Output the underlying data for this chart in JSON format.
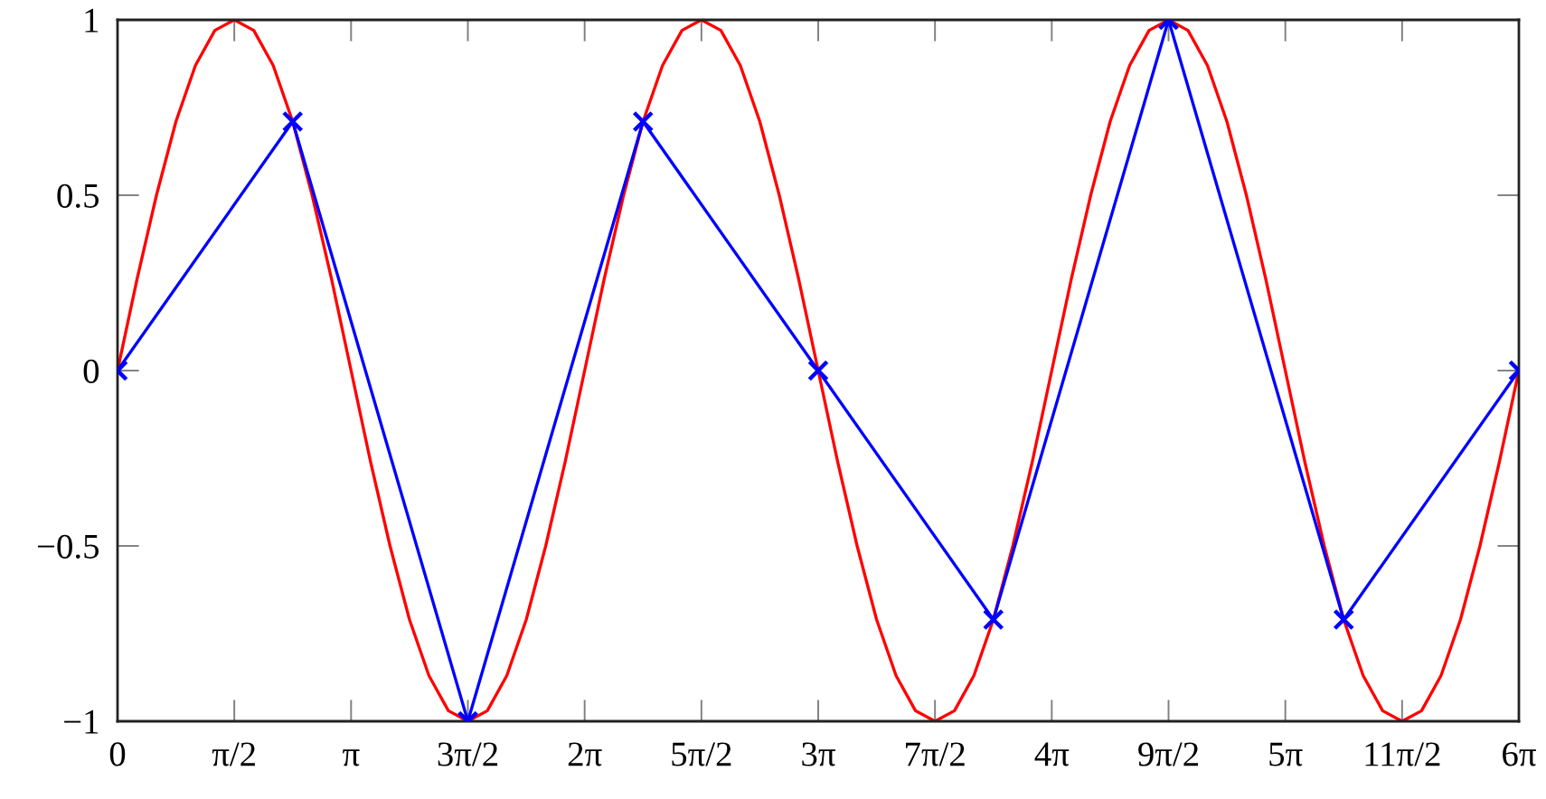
{
  "chart_data": {
    "type": "line",
    "xlim": [
      0,
      18.8496
    ],
    "ylim": [
      -1,
      1
    ],
    "xticks": [
      {
        "value": 0,
        "label": "0"
      },
      {
        "value": 1.5708,
        "label": "π/2"
      },
      {
        "value": 3.1416,
        "label": "π"
      },
      {
        "value": 4.7124,
        "label": "3π/2"
      },
      {
        "value": 6.2832,
        "label": "2π"
      },
      {
        "value": 7.854,
        "label": "5π/2"
      },
      {
        "value": 9.4248,
        "label": "3π"
      },
      {
        "value": 10.9956,
        "label": "7π/2"
      },
      {
        "value": 12.5664,
        "label": "4π"
      },
      {
        "value": 14.1372,
        "label": "9π/2"
      },
      {
        "value": 15.708,
        "label": "5π"
      },
      {
        "value": 17.2788,
        "label": "11π/2"
      },
      {
        "value": 18.8496,
        "label": "6π"
      }
    ],
    "yticks": [
      {
        "value": -1,
        "label": "−1"
      },
      {
        "value": -0.5,
        "label": "−0.5"
      },
      0,
      0.5,
      1
    ],
    "series": [
      {
        "color": "#ff0000",
        "marker": "none",
        "line_style": "solid",
        "x": [
          0,
          0.2618,
          0.5236,
          0.7854,
          1.0472,
          1.309,
          1.5708,
          1.8326,
          2.0944,
          2.3562,
          2.618,
          2.8798,
          3.1416,
          3.4034,
          3.6652,
          3.927,
          4.1888,
          4.4506,
          4.7124,
          4.9742,
          5.236,
          5.4978,
          5.7596,
          6.0214,
          6.2832,
          6.545,
          6.8068,
          7.0686,
          7.3304,
          7.5922,
          7.854,
          8.1158,
          8.3776,
          8.6394,
          8.9012,
          9.163,
          9.4248,
          9.6866,
          9.9484,
          10.2102,
          10.472,
          10.7338,
          10.9956,
          11.2574,
          11.5192,
          11.781,
          12.0428,
          12.3046,
          12.5664,
          12.8282,
          13.09,
          13.3518,
          13.6136,
          13.8754,
          14.1372,
          14.399,
          14.6608,
          14.9226,
          15.1844,
          15.4462,
          15.708,
          15.9698,
          16.2316,
          16.4934,
          16.7552,
          17.017,
          17.2788,
          17.5406,
          17.8024,
          18.0642,
          18.326,
          18.5878,
          18.8496
        ],
        "values": [
          0,
          0.26,
          0.5,
          0.71,
          0.87,
          0.97,
          1,
          0.97,
          0.87,
          0.71,
          0.5,
          0.26,
          0,
          -0.26,
          -0.5,
          -0.71,
          -0.87,
          -0.97,
          -1,
          -0.97,
          -0.87,
          -0.71,
          -0.5,
          -0.26,
          0,
          0.26,
          0.5,
          0.71,
          0.87,
          0.97,
          1,
          0.97,
          0.87,
          0.71,
          0.5,
          0.26,
          0,
          -0.26,
          -0.5,
          -0.71,
          -0.87,
          -0.97,
          -1,
          -0.97,
          -0.87,
          -0.71,
          -0.5,
          -0.26,
          0,
          0.26,
          0.5,
          0.71,
          0.87,
          0.97,
          1,
          0.97,
          0.87,
          0.71,
          0.5,
          0.26,
          0,
          -0.26,
          -0.5,
          -0.71,
          -0.87,
          -0.97,
          -1,
          -0.97,
          -0.87,
          -0.71,
          -0.5,
          -0.26,
          0
        ]
      },
      {
        "color": "#0000ff",
        "marker": "cross",
        "line_style": "solid",
        "x": [
          0,
          2.3562,
          4.7124,
          7.0686,
          9.4248,
          11.781,
          14.1372,
          16.4934,
          18.8496
        ],
        "values": [
          0,
          0.71,
          -1,
          0.71,
          0,
          -0.71,
          1,
          -0.71,
          0
        ]
      }
    ]
  }
}
